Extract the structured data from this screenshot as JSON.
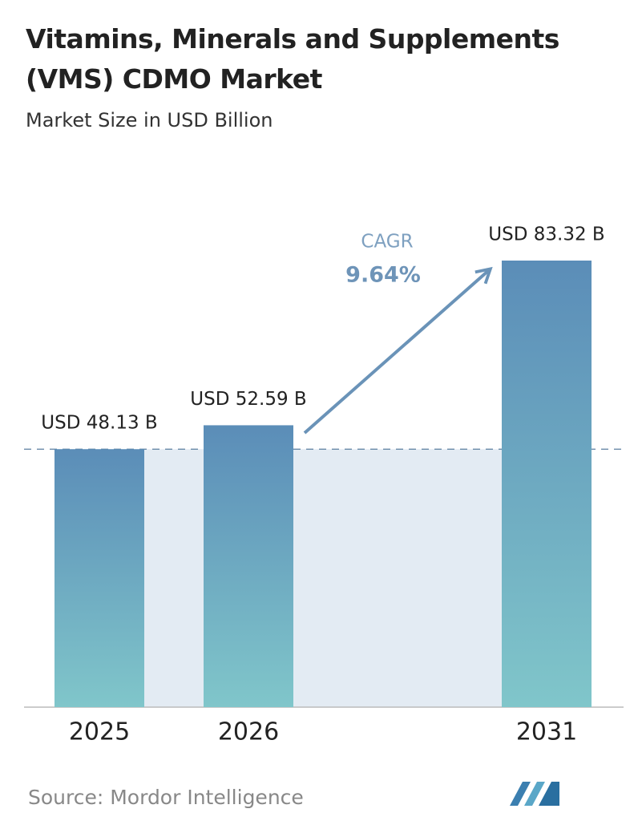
{
  "chart_data": {
    "type": "bar",
    "title": "Vitamins, Minerals and Supplements (VMS) CDMO Market",
    "subtitle": "Market Size in USD Billion",
    "categories": [
      "2025",
      "2026",
      "2031"
    ],
    "values": [
      48.13,
      52.59,
      83.32
    ],
    "value_labels": [
      "USD 48.13 B",
      "USD 52.59 B",
      "USD 83.32 B"
    ],
    "annotation": {
      "label": "CAGR",
      "value": "9.64%"
    },
    "colors": [
      "#5b8db8",
      "#80c6ca"
    ],
    "source": "Source: Mordor Intelligence"
  }
}
